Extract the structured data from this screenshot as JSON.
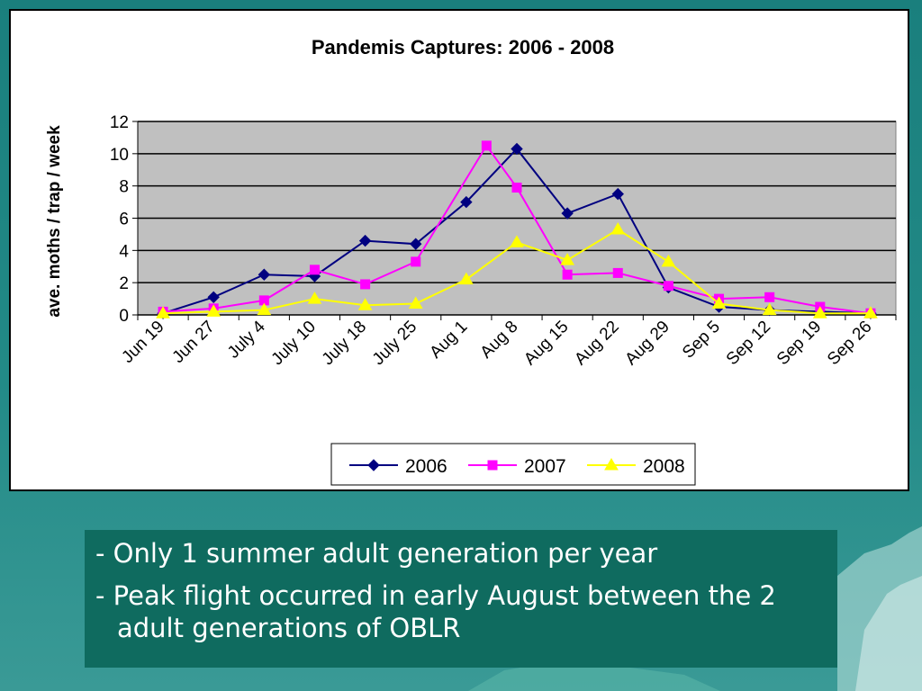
{
  "chart_data": {
    "type": "line",
    "title": "Pandemis Captures:  2006 - 2008",
    "xlabel": "",
    "ylabel": "ave. moths / trap / week",
    "ylim": [
      0,
      12
    ],
    "yticks": [
      "0",
      "2",
      "4",
      "6",
      "8",
      "10",
      "12"
    ],
    "grid": true,
    "legend_position": "bottom-right",
    "categories": [
      "Jun 19",
      "Jun 27",
      "July 4",
      "July 10",
      "July 18",
      "July 25",
      "Aug 1",
      "Aug 8",
      "Aug 15",
      "Aug 22",
      "Aug 29",
      "Sep 5",
      "Sep 12",
      "Sep 19",
      "Sep 26"
    ],
    "series": [
      {
        "name": "2006",
        "color": "#000080",
        "marker": "diamond",
        "points": [
          {
            "x": 0,
            "y": 0.1
          },
          {
            "x": 1,
            "y": 1.1
          },
          {
            "x": 2,
            "y": 2.5
          },
          {
            "x": 3,
            "y": 2.4
          },
          {
            "x": 4,
            "y": 4.6
          },
          {
            "x": 5,
            "y": 4.4
          },
          {
            "x": 6,
            "y": 7.0
          },
          {
            "x": 7,
            "y": 10.3
          },
          {
            "x": 8,
            "y": 6.3
          },
          {
            "x": 9,
            "y": 7.5
          },
          {
            "x": 10,
            "y": 1.7
          },
          {
            "x": 11,
            "y": 0.5
          },
          {
            "x": 12,
            "y": 0.3
          },
          {
            "x": 13,
            "y": 0.2
          },
          {
            "x": 14,
            "y": 0.1
          }
        ]
      },
      {
        "name": "2007",
        "color": "#ff00ff",
        "marker": "square",
        "points": [
          {
            "x": 0,
            "y": 0.2
          },
          {
            "x": 1,
            "y": 0.4
          },
          {
            "x": 2,
            "y": 0.9
          },
          {
            "x": 3,
            "y": 2.8
          },
          {
            "x": 4,
            "y": 1.9
          },
          {
            "x": 5,
            "y": 3.3
          },
          {
            "x": 6.4,
            "y": 10.5
          },
          {
            "x": 7,
            "y": 7.9
          },
          {
            "x": 8,
            "y": 2.5
          },
          {
            "x": 9,
            "y": 2.6
          },
          {
            "x": 10,
            "y": 1.8
          },
          {
            "x": 11,
            "y": 1.0
          },
          {
            "x": 12,
            "y": 1.1
          },
          {
            "x": 13,
            "y": 0.5
          },
          {
            "x": 14,
            "y": 0.1
          }
        ]
      },
      {
        "name": "2008",
        "color": "#ffff00",
        "marker": "triangle",
        "points": [
          {
            "x": 0,
            "y": 0.1
          },
          {
            "x": 1,
            "y": 0.2
          },
          {
            "x": 2,
            "y": 0.3
          },
          {
            "x": 3,
            "y": 1.0
          },
          {
            "x": 4,
            "y": 0.6
          },
          {
            "x": 5,
            "y": 0.7
          },
          {
            "x": 6,
            "y": 2.2
          },
          {
            "x": 7,
            "y": 4.5
          },
          {
            "x": 8,
            "y": 3.4
          },
          {
            "x": 9,
            "y": 5.3
          },
          {
            "x": 10,
            "y": 3.3
          },
          {
            "x": 11,
            "y": 0.7
          },
          {
            "x": 12,
            "y": 0.3
          },
          {
            "x": 13,
            "y": 0.1
          },
          {
            "x": 14,
            "y": 0.1
          }
        ]
      }
    ]
  },
  "notes": [
    "- Only 1 summer adult generation per year",
    "- Peak flight occurred in early August between the 2 adult generations of OBLR"
  ]
}
